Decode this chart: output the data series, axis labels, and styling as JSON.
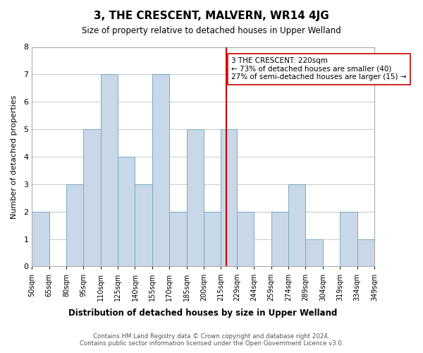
{
  "title": "3, THE CRESCENT, MALVERN, WR14 4JG",
  "subtitle": "Size of property relative to detached houses in Upper Welland",
  "xlabel": "Distribution of detached houses by size in Upper Welland",
  "ylabel": "Number of detached properties",
  "footer_line1": "Contains HM Land Registry data © Crown copyright and database right 2024.",
  "footer_line2": "Contains public sector information licensed under the Open Government Licence v3.0.",
  "bin_edges": [
    50,
    65,
    80,
    95,
    110,
    125,
    140,
    155,
    170,
    185,
    200,
    215,
    229,
    244,
    259,
    274,
    289,
    304,
    319,
    334,
    349
  ],
  "hist_values": [
    2,
    0,
    3,
    5,
    7,
    4,
    3,
    7,
    2,
    5,
    2,
    5,
    2,
    0,
    2,
    3,
    1,
    0,
    2,
    1
  ],
  "x_tick_labels": [
    "50sqm",
    "65sqm",
    "80sqm",
    "95sqm",
    "110sqm",
    "125sqm",
    "140sqm",
    "155sqm",
    "170sqm",
    "185sqm",
    "200sqm",
    "215sqm",
    "229sqm",
    "244sqm",
    "259sqm",
    "274sqm",
    "289sqm",
    "304sqm",
    "319sqm",
    "334sqm",
    "349sqm"
  ],
  "property_line_x": 220,
  "annotation_title": "3 THE CRESCENT: 220sqm",
  "annotation_line1": "← 73% of detached houses are smaller (40)",
  "annotation_line2": "27% of semi-detached houses are larger (15) →",
  "bar_color": "#c8d8e8",
  "bar_edge_color": "#7aaabf",
  "line_color": "#cc0000",
  "annotation_box_color": "#ffffff",
  "annotation_box_edge": "#cc0000",
  "ylim": [
    0,
    8
  ],
  "background_color": "#ffffff",
  "grid_color": "#cccccc"
}
